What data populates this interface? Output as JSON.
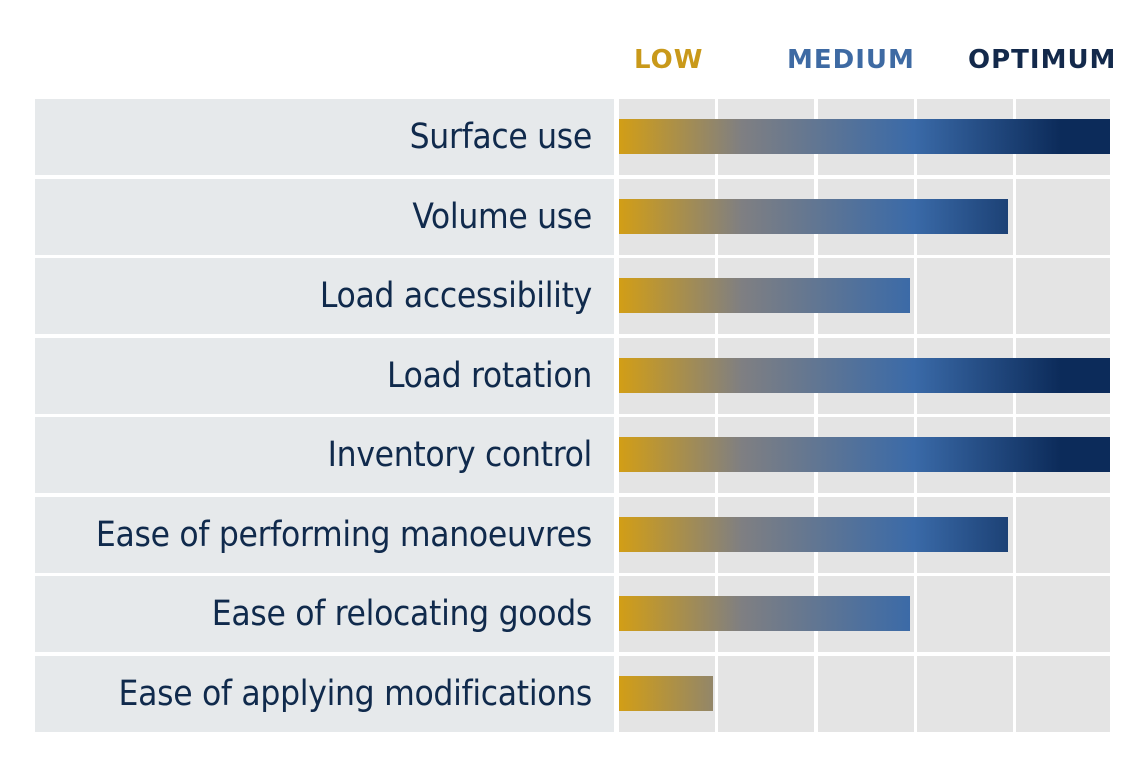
{
  "colors": {
    "low": "#d29e16",
    "mid_gray": "#7f7f82",
    "medium": "#3a6aa8",
    "optimum": "#0c2b5a",
    "label_text": "#102a4c",
    "label_bg": "#e6e9eb",
    "grid_bg": "#e4e4e4"
  },
  "scale": {
    "low_label": "LOW",
    "medium_label": "MEDIUM",
    "optimum_label": "OPTIMUM",
    "low_color": "#c9991a",
    "medium_color": "#3e6aa3",
    "optimum_color": "#13294b"
  },
  "chart_data": {
    "type": "bar",
    "orientation": "horizontal",
    "title": "",
    "xlabel": "",
    "ylabel": "",
    "xlim": [
      0,
      5
    ],
    "grid": true,
    "legend": "none",
    "scale_labels": [
      "LOW",
      "MEDIUM",
      "OPTIMUM"
    ],
    "categories": [
      "Surface use",
      "Volume use",
      "Load accessibility",
      "Load rotation",
      "Inventory control",
      "Ease of performing manoeuvres",
      "Ease of relocating goods",
      "Ease of applying modifications"
    ],
    "values": [
      5,
      4,
      3,
      5,
      5,
      4,
      3,
      1
    ]
  }
}
